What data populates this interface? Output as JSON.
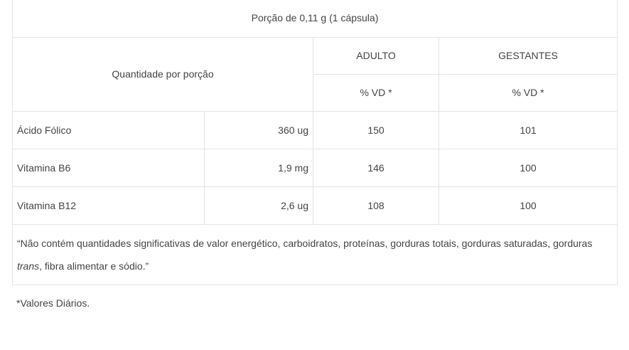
{
  "table": {
    "portion": "Porção de 0,11 g (1 cápsula)",
    "quantity_header": "Quantidade por porção",
    "group_adult": "ADULTO",
    "group_pregnant": "GESTANTES",
    "vd_adult": "% VD *",
    "vd_pregnant": "% VD *",
    "rows": [
      {
        "nutrient": "Ácido Fólico",
        "amount": "360 ug",
        "adult": "150",
        "pregnant": "101"
      },
      {
        "nutrient": "Vitamina B6",
        "amount": "1,9 mg",
        "adult": "146",
        "pregnant": "100"
      },
      {
        "nutrient": "Vitamina B12",
        "amount": "2,6 ug",
        "adult": "108",
        "pregnant": "100"
      }
    ],
    "note_before": "“Não contém quantidades significativas de valor energético, carboidratos, proteínas, gorduras totais, gorduras saturadas, gorduras ",
    "note_italic": "trans",
    "note_after": ", fibra alimentar e sódio.”"
  },
  "footnote": "*Valores Diários."
}
